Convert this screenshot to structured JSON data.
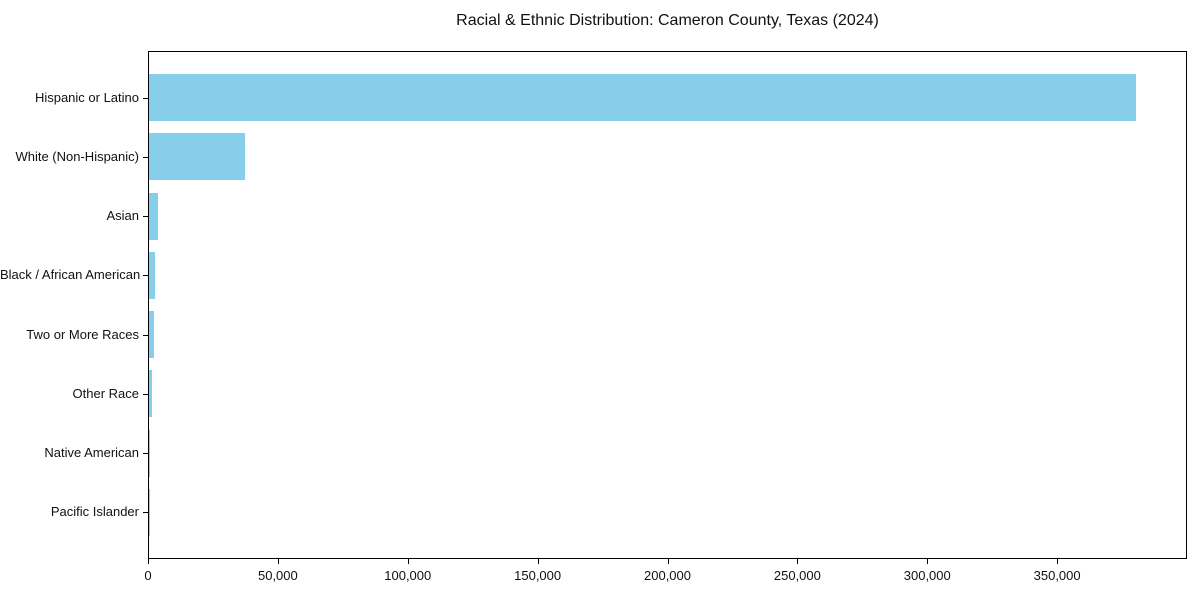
{
  "title": "Racial & Ethnic Distribution: Cameron County, Texas (2024)",
  "chart_data": {
    "type": "bar",
    "orientation": "horizontal",
    "title": "Racial & Ethnic Distribution: Cameron County, Texas (2024)",
    "xlabel": "",
    "ylabel": "",
    "categories": [
      "Hispanic or Latino",
      "White (Non-Hispanic)",
      "Asian",
      "Black / African American",
      "Two or More Races",
      "Other Race",
      "Native American",
      "Pacific Islander"
    ],
    "values": [
      380000,
      37000,
      3500,
      2500,
      1900,
      1200,
      350,
      50
    ],
    "xlim": [
      0,
      400000
    ],
    "xticks": [
      0,
      50000,
      100000,
      150000,
      200000,
      250000,
      300000,
      350000
    ],
    "xtick_labels": [
      "0",
      "50,000",
      "100,000",
      "150,000",
      "200,000",
      "250,000",
      "300,000",
      "350,000"
    ],
    "bar_color": "#87CEEB",
    "background_color": "#FFFFFF",
    "spine_color": "#000000",
    "grid": false,
    "legend": null
  }
}
